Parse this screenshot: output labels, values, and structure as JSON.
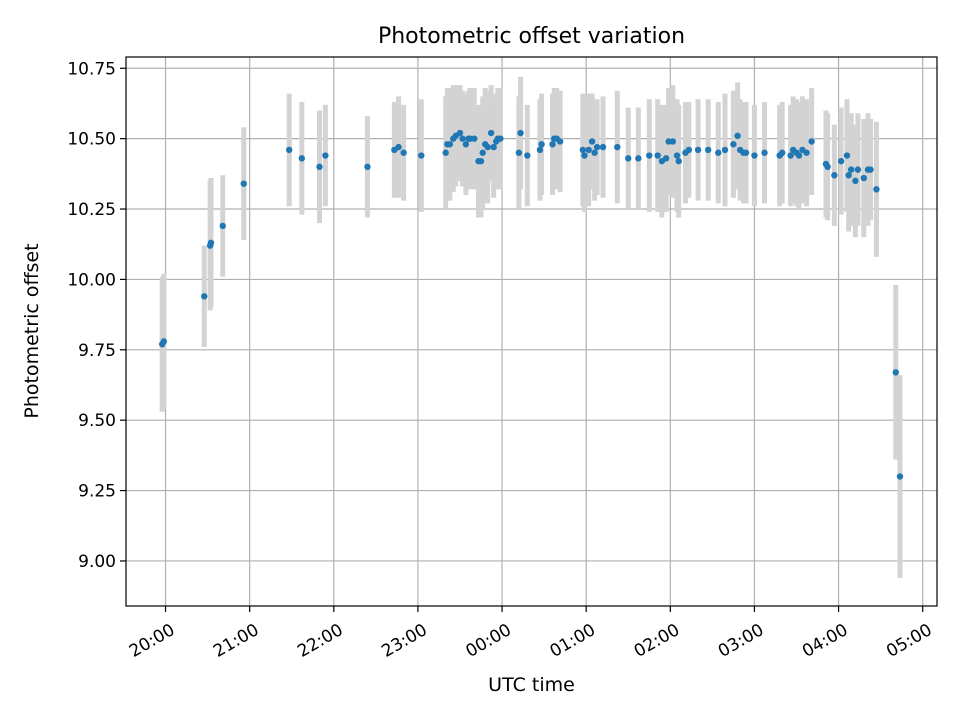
{
  "chart_data": {
    "type": "scatter",
    "title": "Photometric offset variation",
    "xlabel": "UTC time",
    "ylabel": "Photometric offset",
    "x_unit": "hours since 20:00 UTC",
    "xlim": [
      -0.47,
      9.17
    ],
    "ylim": [
      8.84,
      10.79
    ],
    "grid": true,
    "x_ticks": [
      0,
      1,
      2,
      3,
      4,
      5,
      6,
      7,
      8,
      9
    ],
    "x_tick_labels": [
      "20:00",
      "21:00",
      "22:00",
      "23:00",
      "00:00",
      "01:00",
      "02:00",
      "03:00",
      "04:00",
      "05:00"
    ],
    "y_ticks": [
      9.0,
      9.25,
      9.5,
      9.75,
      10.0,
      10.25,
      10.5,
      10.75
    ],
    "y_tick_labels": [
      "9.00",
      "9.25",
      "9.50",
      "9.75",
      "10.00",
      "10.25",
      "10.50",
      "10.75"
    ],
    "colors": {
      "points": "#1f77b4",
      "errorbars": "#d3d3d3",
      "grid": "#b0b0b0"
    },
    "series": [
      {
        "name": "offset",
        "x": [
          -0.04,
          -0.02,
          0.46,
          0.53,
          0.54,
          0.68,
          0.93,
          1.47,
          1.62,
          1.83,
          1.9,
          2.4,
          2.72,
          2.77,
          2.83,
          3.04,
          3.33,
          3.35,
          3.38,
          3.42,
          3.45,
          3.5,
          3.53,
          3.57,
          3.6,
          3.62,
          3.67,
          3.72,
          3.75,
          3.77,
          3.8,
          3.83,
          3.87,
          3.9,
          3.93,
          3.95,
          3.98,
          4.2,
          4.22,
          4.3,
          4.45,
          4.47,
          4.6,
          4.62,
          4.65,
          4.69,
          4.96,
          4.98,
          5.03,
          5.07,
          5.1,
          5.13,
          5.2,
          5.37,
          5.5,
          5.62,
          5.75,
          5.85,
          5.9,
          5.95,
          5.98,
          6.03,
          6.08,
          6.1,
          6.18,
          6.22,
          6.33,
          6.45,
          6.57,
          6.65,
          6.75,
          6.8,
          6.83,
          6.87,
          6.9,
          7.0,
          7.12,
          7.3,
          7.33,
          7.43,
          7.46,
          7.5,
          7.53,
          7.57,
          7.62,
          7.68,
          7.85,
          7.87,
          7.95,
          8.03,
          8.1,
          8.12,
          8.15,
          8.2,
          8.23,
          8.3,
          8.35,
          8.38,
          8.45,
          8.68,
          8.73
        ],
        "y": [
          9.77,
          9.78,
          9.94,
          10.12,
          10.13,
          10.19,
          10.34,
          10.46,
          10.43,
          10.4,
          10.44,
          10.4,
          10.46,
          10.47,
          10.45,
          10.44,
          10.45,
          10.48,
          10.48,
          10.5,
          10.51,
          10.52,
          10.5,
          10.48,
          10.5,
          10.5,
          10.5,
          10.42,
          10.42,
          10.45,
          10.48,
          10.47,
          10.52,
          10.47,
          10.49,
          10.5,
          10.5,
          10.45,
          10.52,
          10.44,
          10.46,
          10.48,
          10.48,
          10.5,
          10.5,
          10.49,
          10.46,
          10.44,
          10.46,
          10.49,
          10.45,
          10.47,
          10.47,
          10.47,
          10.43,
          10.43,
          10.44,
          10.44,
          10.42,
          10.43,
          10.49,
          10.49,
          10.44,
          10.42,
          10.45,
          10.46,
          10.46,
          10.46,
          10.45,
          10.46,
          10.48,
          10.51,
          10.46,
          10.45,
          10.45,
          10.44,
          10.45,
          10.44,
          10.45,
          10.44,
          10.46,
          10.45,
          10.44,
          10.46,
          10.45,
          10.49,
          10.41,
          10.4,
          10.37,
          10.42,
          10.44,
          10.37,
          10.39,
          10.35,
          10.39,
          10.36,
          10.39,
          10.39,
          10.32,
          9.67,
          9.3
        ],
        "yerr": [
          0.24,
          0.24,
          0.18,
          0.23,
          0.23,
          0.18,
          0.2,
          0.2,
          0.2,
          0.2,
          0.18,
          0.18,
          0.17,
          0.18,
          0.17,
          0.2,
          0.2,
          0.2,
          0.2,
          0.19,
          0.18,
          0.17,
          0.17,
          0.18,
          0.17,
          0.18,
          0.18,
          0.2,
          0.2,
          0.2,
          0.2,
          0.2,
          0.17,
          0.18,
          0.17,
          0.18,
          0.18,
          0.2,
          0.2,
          0.18,
          0.18,
          0.18,
          0.18,
          0.18,
          0.18,
          0.18,
          0.2,
          0.2,
          0.2,
          0.17,
          0.17,
          0.17,
          0.18,
          0.2,
          0.18,
          0.18,
          0.2,
          0.2,
          0.2,
          0.19,
          0.19,
          0.2,
          0.2,
          0.2,
          0.18,
          0.17,
          0.18,
          0.18,
          0.18,
          0.2,
          0.19,
          0.19,
          0.18,
          0.18,
          0.18,
          0.18,
          0.18,
          0.18,
          0.18,
          0.18,
          0.19,
          0.19,
          0.19,
          0.19,
          0.19,
          0.19,
          0.19,
          0.19,
          0.18,
          0.19,
          0.2,
          0.2,
          0.2,
          0.2,
          0.2,
          0.21,
          0.2,
          0.18,
          0.24,
          0.31,
          0.36
        ]
      }
    ]
  }
}
